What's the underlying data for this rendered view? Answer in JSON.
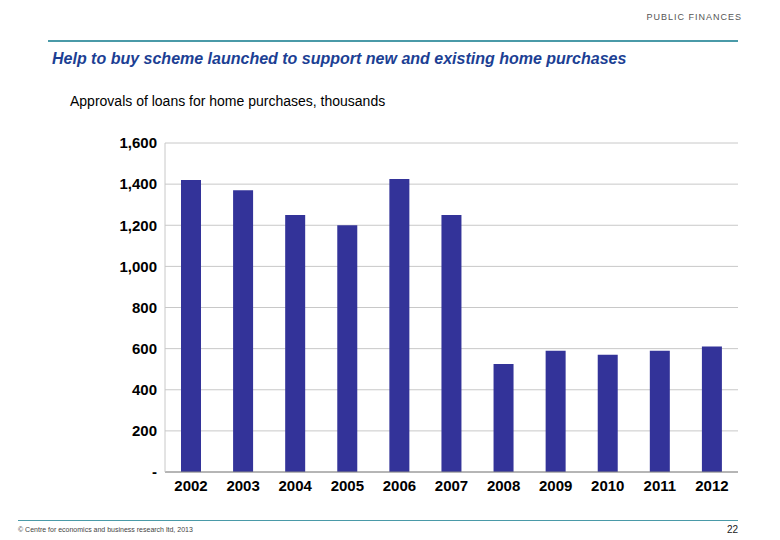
{
  "header": "PUBLIC FINANCES",
  "chart_data": {
    "type": "bar",
    "title": "Help to buy scheme launched to support new and existing home purchases",
    "subtitle": "Approvals of loans for home purchases, thousands",
    "categories": [
      "2002",
      "2003",
      "2004",
      "2005",
      "2006",
      "2007",
      "2008",
      "2009",
      "2010",
      "2011",
      "2012"
    ],
    "values": [
      1420,
      1370,
      1250,
      1200,
      1425,
      1250,
      525,
      590,
      570,
      590,
      610
    ],
    "color": "#333399",
    "ylim": [
      0,
      1600
    ],
    "yticks": [
      {
        "value": 0,
        "label": "-"
      },
      200,
      400,
      600,
      800,
      {
        "value": 1000,
        "label": "1,000"
      },
      {
        "value": 1200,
        "label": "1,200"
      },
      {
        "value": 1400,
        "label": "1,400"
      },
      {
        "value": 1600,
        "label": "1,600"
      }
    ],
    "grid": true
  },
  "footer": {
    "source": "© Centre for economics and business research ltd, 2013",
    "page": 22
  }
}
